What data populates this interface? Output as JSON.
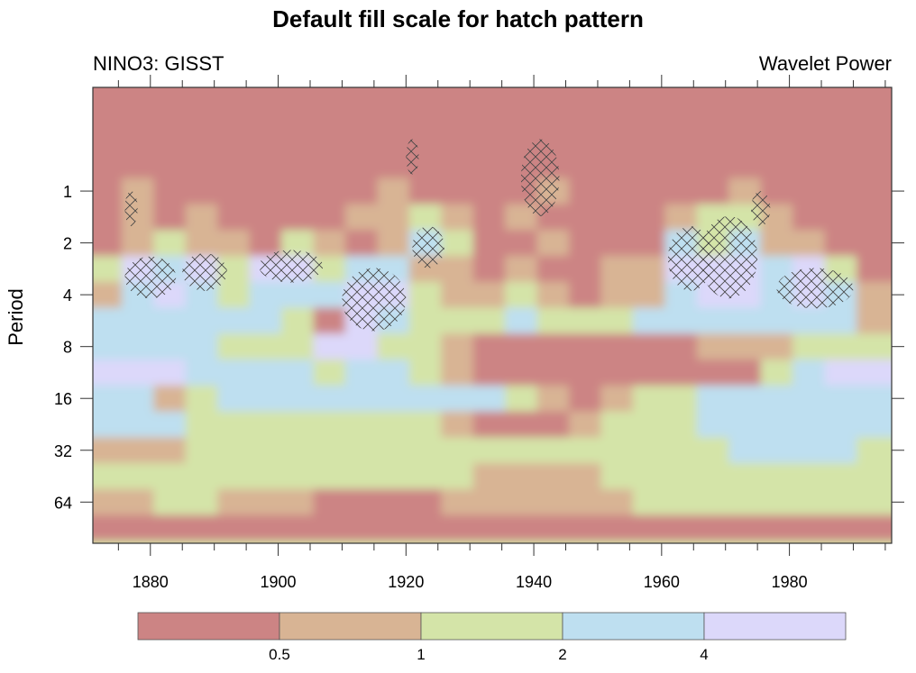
{
  "chart_data": {
    "type": "heatmap",
    "title": "Default fill scale for hatch pattern",
    "left_string": "NINO3: GISST",
    "right_string": "Wavelet Power",
    "xlabel": "",
    "ylabel": "Period",
    "xlim": [
      1871,
      1996
    ],
    "ylim": [
      0.25,
      111
    ],
    "y_scale": "log2",
    "y_reversed": true,
    "x_ticks": [
      "1880",
      "1900",
      "1920",
      "1940",
      "1960",
      "1980"
    ],
    "y_ticks": [
      "1",
      "2",
      "4",
      "8",
      "16",
      "32",
      "64"
    ],
    "colorbar": {
      "position": "bottom",
      "levels": [
        "0.5",
        "1",
        "2",
        "4"
      ],
      "colors": [
        "#cc8484",
        "#d8b494",
        "#d4e4a8",
        "#bedff0",
        "#dcd8fa"
      ]
    },
    "grid_note_columns_years": [
      1873,
      1878,
      1883,
      1888,
      1893,
      1898,
      1903,
      1908,
      1913,
      1918,
      1923,
      1928,
      1933,
      1938,
      1943,
      1948,
      1953,
      1958,
      1963,
      1968,
      1973,
      1978,
      1983,
      1988,
      1993
    ],
    "grid_rows_period_log2": [
      -2,
      -1.5,
      -1,
      -0.5,
      0,
      0.5,
      1,
      1.5,
      2,
      2.5,
      3,
      3.5,
      4,
      4.5,
      5,
      5.5,
      6,
      6.5,
      7
    ],
    "level_grid": [
      "0000000000000000000000000",
      "0000000000000000000000000",
      "0000000000000000000000000",
      "0000000000000000000000000",
      "0100000001000010000010000",
      "0101000011210100001221000",
      "0121102101320010003231100",
      "2434244233110100114443420",
      "1343233344211210113443431",
      "3333332043222322233333331",
      "3333222442210000000111222",
      "4443333233210000000002344",
      "3312333333333210122333333",
      "3332222222210001222333333",
      "1112222222222222222233332",
      "2222222222221111222222222",
      "1122111000011111122222222",
      "0000000000000000000000000",
      "2222222222222222222222222"
    ],
    "hatched_regions": [
      {
        "years": [
          1876,
          1884
        ],
        "periods": [
          2.4,
          4.2
        ]
      },
      {
        "years": [
          1885,
          1892
        ],
        "periods": [
          2.3,
          3.8
        ]
      },
      {
        "years": [
          1897,
          1907
        ],
        "periods": [
          2.2,
          3.4
        ]
      },
      {
        "years": [
          1910,
          1920
        ],
        "periods": [
          2.8,
          6.5
        ]
      },
      {
        "years": [
          1921,
          1926
        ],
        "periods": [
          1.6,
          2.8
        ]
      },
      {
        "years": [
          1961,
          1968
        ],
        "periods": [
          1.6,
          3.8
        ]
      },
      {
        "years": [
          1966,
          1975
        ],
        "periods": [
          1.4,
          4.2
        ]
      },
      {
        "years": [
          1978,
          1990
        ],
        "periods": [
          2.8,
          4.8
        ]
      },
      {
        "years": [
          1876,
          1878
        ],
        "periods": [
          1.0,
          1.6
        ]
      },
      {
        "years": [
          1920,
          1922
        ],
        "periods": [
          0.5,
          0.8
        ]
      },
      {
        "years": [
          1938,
          1944
        ],
        "periods": [
          0.5,
          1.4
        ]
      },
      {
        "years": [
          1974,
          1977
        ],
        "periods": [
          1.0,
          1.6
        ]
      }
    ]
  }
}
